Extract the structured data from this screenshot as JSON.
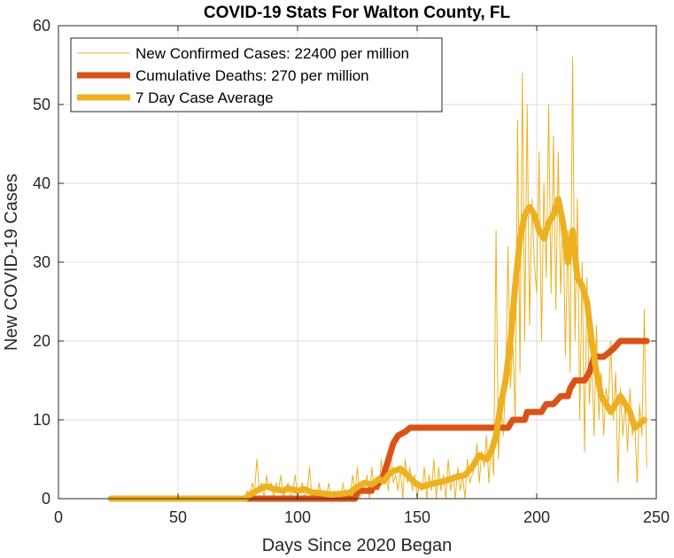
{
  "chart_data": {
    "type": "line",
    "title": "COVID-19 Stats For Walton County, FL",
    "xlabel": "Days Since 2020 Began",
    "ylabel": "New COVID-19 Cases",
    "xlim": [
      0,
      250
    ],
    "ylim": [
      0,
      60
    ],
    "xticks": [
      0,
      50,
      100,
      150,
      200,
      250
    ],
    "yticks": [
      0,
      10,
      20,
      30,
      40,
      50,
      60
    ],
    "grid": true,
    "legend_position": "top-left",
    "series": [
      {
        "name": "New Confirmed Cases: 22400 per million",
        "color": "#EDB120",
        "style": "thin",
        "points": [
          [
            22,
            0
          ],
          [
            40,
            0
          ],
          [
            60,
            0
          ],
          [
            78,
            0
          ],
          [
            79,
            1
          ],
          [
            80,
            0
          ],
          [
            81,
            2
          ],
          [
            82,
            1
          ],
          [
            83,
            5
          ],
          [
            84,
            1
          ],
          [
            85,
            2
          ],
          [
            86,
            0
          ],
          [
            87,
            3
          ],
          [
            88,
            1
          ],
          [
            89,
            2
          ],
          [
            90,
            0
          ],
          [
            91,
            2
          ],
          [
            92,
            1
          ],
          [
            93,
            3
          ],
          [
            94,
            0
          ],
          [
            95,
            1
          ],
          [
            96,
            2
          ],
          [
            97,
            0
          ],
          [
            98,
            1
          ],
          [
            99,
            3
          ],
          [
            100,
            0
          ],
          [
            101,
            1
          ],
          [
            102,
            2
          ],
          [
            103,
            0
          ],
          [
            104,
            1
          ],
          [
            105,
            4
          ],
          [
            106,
            0
          ],
          [
            107,
            1
          ],
          [
            108,
            0
          ],
          [
            109,
            2
          ],
          [
            110,
            0
          ],
          [
            111,
            1
          ],
          [
            112,
            0
          ],
          [
            113,
            2
          ],
          [
            114,
            0
          ],
          [
            115,
            1
          ],
          [
            116,
            0
          ],
          [
            117,
            1
          ],
          [
            118,
            0
          ],
          [
            119,
            2
          ],
          [
            120,
            0
          ],
          [
            121,
            1
          ],
          [
            122,
            0
          ],
          [
            123,
            3
          ],
          [
            124,
            1
          ],
          [
            125,
            4
          ],
          [
            126,
            0
          ],
          [
            127,
            2
          ],
          [
            128,
            1
          ],
          [
            129,
            3
          ],
          [
            130,
            0
          ],
          [
            131,
            4
          ],
          [
            132,
            1
          ],
          [
            133,
            2
          ],
          [
            134,
            1
          ],
          [
            135,
            5
          ],
          [
            136,
            2
          ],
          [
            137,
            3
          ],
          [
            138,
            1
          ],
          [
            139,
            6
          ],
          [
            140,
            2
          ],
          [
            141,
            3
          ],
          [
            142,
            1
          ],
          [
            143,
            4
          ],
          [
            144,
            0
          ],
          [
            145,
            5
          ],
          [
            146,
            2
          ],
          [
            147,
            4
          ],
          [
            148,
            1
          ],
          [
            149,
            3
          ],
          [
            150,
            0
          ],
          [
            151,
            2
          ],
          [
            152,
            1
          ],
          [
            153,
            4
          ],
          [
            154,
            0
          ],
          [
            155,
            3
          ],
          [
            156,
            1
          ],
          [
            157,
            5
          ],
          [
            158,
            0
          ],
          [
            159,
            4
          ],
          [
            160,
            1
          ],
          [
            161,
            3
          ],
          [
            162,
            0
          ],
          [
            163,
            5
          ],
          [
            164,
            1
          ],
          [
            165,
            3
          ],
          [
            166,
            0
          ],
          [
            167,
            4
          ],
          [
            168,
            1
          ],
          [
            169,
            3
          ],
          [
            170,
            0
          ],
          [
            171,
            5
          ],
          [
            172,
            2
          ],
          [
            173,
            3
          ],
          [
            174,
            4
          ],
          [
            175,
            7
          ],
          [
            176,
            2
          ],
          [
            177,
            6
          ],
          [
            178,
            4
          ],
          [
            179,
            8
          ],
          [
            180,
            2
          ],
          [
            181,
            7
          ],
          [
            182,
            3
          ],
          [
            183,
            34
          ],
          [
            184,
            5
          ],
          [
            185,
            12
          ],
          [
            186,
            8
          ],
          [
            187,
            15
          ],
          [
            188,
            32
          ],
          [
            189,
            14
          ],
          [
            190,
            20
          ],
          [
            191,
            10
          ],
          [
            192,
            48
          ],
          [
            193,
            16
          ],
          [
            194,
            54
          ],
          [
            195,
            20
          ],
          [
            196,
            50
          ],
          [
            197,
            22
          ],
          [
            198,
            38
          ],
          [
            199,
            30
          ],
          [
            200,
            26
          ],
          [
            201,
            44
          ],
          [
            202,
            20
          ],
          [
            203,
            40
          ],
          [
            204,
            28
          ],
          [
            205,
            50
          ],
          [
            206,
            26
          ],
          [
            207,
            46
          ],
          [
            208,
            24
          ],
          [
            209,
            44
          ],
          [
            210,
            26
          ],
          [
            211,
            36
          ],
          [
            212,
            18
          ],
          [
            213,
            34
          ],
          [
            214,
            16
          ],
          [
            215,
            56
          ],
          [
            216,
            20
          ],
          [
            217,
            38
          ],
          [
            218,
            10
          ],
          [
            219,
            30
          ],
          [
            220,
            6
          ],
          [
            221,
            28
          ],
          [
            222,
            12
          ],
          [
            223,
            18
          ],
          [
            224,
            8
          ],
          [
            225,
            22
          ],
          [
            226,
            10
          ],
          [
            227,
            16
          ],
          [
            228,
            8
          ],
          [
            229,
            14
          ],
          [
            230,
            12
          ],
          [
            231,
            20
          ],
          [
            232,
            10
          ],
          [
            233,
            16
          ],
          [
            234,
            2
          ],
          [
            235,
            14
          ],
          [
            236,
            8
          ],
          [
            237,
            12
          ],
          [
            238,
            6
          ],
          [
            239,
            14
          ],
          [
            240,
            8
          ],
          [
            241,
            10
          ],
          [
            242,
            2
          ],
          [
            243,
            12
          ],
          [
            244,
            8
          ],
          [
            245,
            24
          ],
          [
            246,
            4
          ]
        ]
      },
      {
        "name": "Cumulative Deaths: 270 per million",
        "color": "#D95319",
        "style": "thick",
        "points": [
          [
            22,
            0
          ],
          [
            124,
            0
          ],
          [
            125,
            1
          ],
          [
            131,
            1
          ],
          [
            131,
            1.5
          ],
          [
            133,
            1.5
          ],
          [
            134,
            2
          ],
          [
            135,
            2.5
          ],
          [
            136,
            3
          ],
          [
            137,
            4
          ],
          [
            138,
            5
          ],
          [
            139,
            6
          ],
          [
            140,
            7
          ],
          [
            142,
            8
          ],
          [
            145,
            8.5
          ],
          [
            147,
            9
          ],
          [
            188,
            9
          ],
          [
            190,
            10
          ],
          [
            195,
            10
          ],
          [
            196,
            11
          ],
          [
            202,
            11
          ],
          [
            204,
            12
          ],
          [
            207,
            12
          ],
          [
            210,
            13
          ],
          [
            213,
            13
          ],
          [
            214,
            14
          ],
          [
            216,
            15
          ],
          [
            220,
            15
          ],
          [
            222,
            16
          ],
          [
            224,
            18
          ],
          [
            228,
            18
          ],
          [
            232,
            19
          ],
          [
            235,
            20
          ],
          [
            246,
            20
          ]
        ]
      },
      {
        "name": "7 Day Case Average",
        "color": "#EDB120",
        "style": "medium",
        "points": [
          [
            22,
            0
          ],
          [
            78,
            0
          ],
          [
            80,
            0.5
          ],
          [
            83,
            1
          ],
          [
            86,
            1.5
          ],
          [
            88,
            1.5
          ],
          [
            90,
            1.2
          ],
          [
            94,
            1
          ],
          [
            96,
            1.3
          ],
          [
            100,
            1
          ],
          [
            103,
            1.2
          ],
          [
            106,
            0.8
          ],
          [
            110,
            0.7
          ],
          [
            114,
            0.5
          ],
          [
            118,
            0.6
          ],
          [
            122,
            0.8
          ],
          [
            125,
            1.5
          ],
          [
            128,
            2
          ],
          [
            131,
            1.8
          ],
          [
            134,
            2.5
          ],
          [
            136,
            2.2
          ],
          [
            138,
            3
          ],
          [
            140,
            3.5
          ],
          [
            143,
            3.8
          ],
          [
            146,
            3
          ],
          [
            149,
            2
          ],
          [
            152,
            1.5
          ],
          [
            155,
            1.8
          ],
          [
            158,
            2
          ],
          [
            161,
            2.2
          ],
          [
            164,
            2.5
          ],
          [
            167,
            2.8
          ],
          [
            170,
            3
          ],
          [
            173,
            4
          ],
          [
            176,
            5.5
          ],
          [
            179,
            5
          ],
          [
            181,
            6
          ],
          [
            183,
            8
          ],
          [
            185,
            12
          ],
          [
            187,
            15
          ],
          [
            189,
            20
          ],
          [
            191,
            27
          ],
          [
            193,
            33
          ],
          [
            195,
            36
          ],
          [
            197,
            37
          ],
          [
            199,
            36
          ],
          [
            201,
            34
          ],
          [
            203,
            33
          ],
          [
            205,
            35
          ],
          [
            207,
            36
          ],
          [
            209,
            38
          ],
          [
            211,
            35
          ],
          [
            213,
            30
          ],
          [
            215,
            34
          ],
          [
            217,
            28
          ],
          [
            219,
            27
          ],
          [
            221,
            25
          ],
          [
            223,
            20
          ],
          [
            225,
            16
          ],
          [
            227,
            13
          ],
          [
            229,
            12
          ],
          [
            231,
            11
          ],
          [
            233,
            12
          ],
          [
            235,
            13
          ],
          [
            237,
            12
          ],
          [
            239,
            11
          ],
          [
            241,
            9
          ],
          [
            243,
            9.5
          ],
          [
            245,
            10
          ]
        ]
      }
    ]
  }
}
